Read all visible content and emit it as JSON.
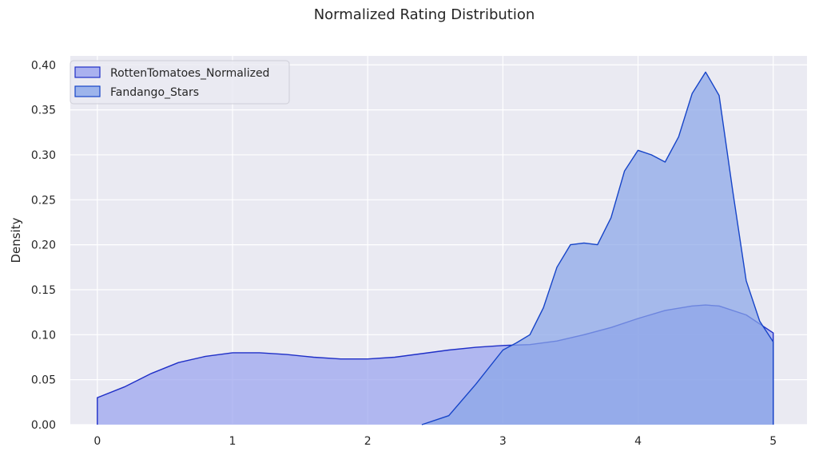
{
  "chart_data": {
    "type": "area",
    "title": "Normalized Rating Distribution",
    "xlabel": "",
    "ylabel": "Density",
    "xlim": [
      -0.2,
      5.25
    ],
    "ylim": [
      0,
      0.41
    ],
    "x_ticks": [
      0,
      1,
      2,
      3,
      4,
      5
    ],
    "y_ticks": [
      0.0,
      0.05,
      0.1,
      0.15,
      0.2,
      0.25,
      0.3,
      0.35,
      0.4
    ],
    "x_tick_labels": [
      "0",
      "1",
      "2",
      "3",
      "4",
      "5"
    ],
    "y_tick_labels": [
      "0.00",
      "0.05",
      "0.10",
      "0.15",
      "0.20",
      "0.25",
      "0.30",
      "0.35",
      "0.40"
    ],
    "grid": true,
    "legend_position": "top-left",
    "background": "#eaeaf2",
    "series": [
      {
        "name": "RottenTomatoes_Normalized",
        "fill": "#9aa3ee",
        "stroke": "#1f2fc7",
        "points": [
          [
            0.0,
            0.03
          ],
          [
            0.2,
            0.042
          ],
          [
            0.4,
            0.057
          ],
          [
            0.6,
            0.069
          ],
          [
            0.8,
            0.076
          ],
          [
            1.0,
            0.08
          ],
          [
            1.2,
            0.08
          ],
          [
            1.4,
            0.078
          ],
          [
            1.6,
            0.075
          ],
          [
            1.8,
            0.073
          ],
          [
            2.0,
            0.073
          ],
          [
            2.2,
            0.075
          ],
          [
            2.4,
            0.079
          ],
          [
            2.6,
            0.083
          ],
          [
            2.8,
            0.086
          ],
          [
            3.0,
            0.088
          ],
          [
            3.2,
            0.089
          ],
          [
            3.4,
            0.093
          ],
          [
            3.6,
            0.1
          ],
          [
            3.8,
            0.108
          ],
          [
            4.0,
            0.118
          ],
          [
            4.2,
            0.127
          ],
          [
            4.4,
            0.132
          ],
          [
            4.5,
            0.133
          ],
          [
            4.6,
            0.132
          ],
          [
            4.8,
            0.122
          ],
          [
            5.0,
            0.102
          ]
        ]
      },
      {
        "name": "Fandango_Stars",
        "fill": "#8aa6e8",
        "stroke": "#1644c8",
        "points": [
          [
            2.4,
            0.0
          ],
          [
            2.6,
            0.01
          ],
          [
            2.8,
            0.045
          ],
          [
            3.0,
            0.083
          ],
          [
            3.1,
            0.091
          ],
          [
            3.2,
            0.1
          ],
          [
            3.3,
            0.13
          ],
          [
            3.4,
            0.175
          ],
          [
            3.5,
            0.2
          ],
          [
            3.6,
            0.202
          ],
          [
            3.7,
            0.2
          ],
          [
            3.8,
            0.23
          ],
          [
            3.9,
            0.282
          ],
          [
            4.0,
            0.305
          ],
          [
            4.1,
            0.3
          ],
          [
            4.2,
            0.292
          ],
          [
            4.3,
            0.32
          ],
          [
            4.4,
            0.368
          ],
          [
            4.5,
            0.392
          ],
          [
            4.6,
            0.366
          ],
          [
            4.7,
            0.26
          ],
          [
            4.8,
            0.16
          ],
          [
            4.9,
            0.115
          ],
          [
            5.0,
            0.092
          ]
        ]
      }
    ]
  }
}
